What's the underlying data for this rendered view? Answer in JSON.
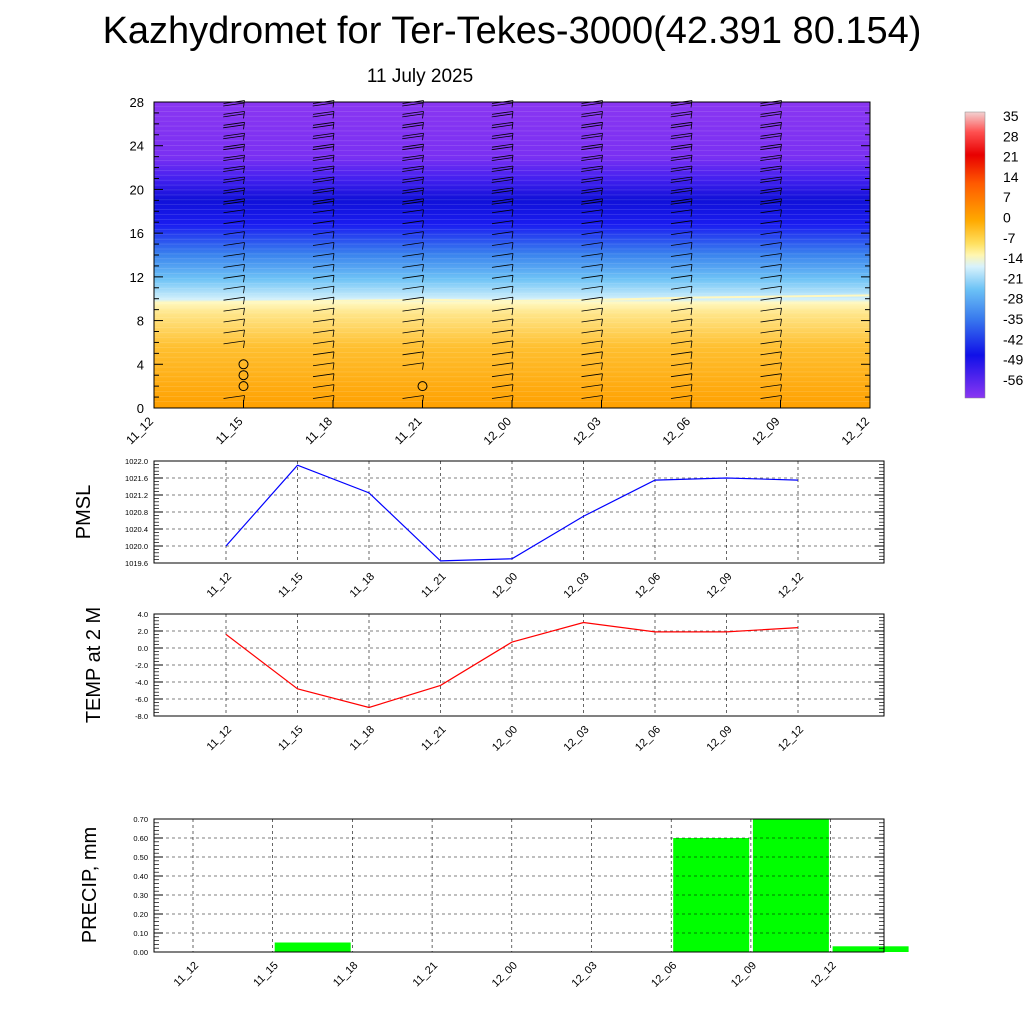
{
  "title": "Kazhydromet for Ter-Tekes-3000(42.391 80.154)",
  "subtitle": "11 July 2025",
  "time_labels": [
    "11_12",
    "11_15",
    "11_18",
    "11_21",
    "12_00",
    "12_03",
    "12_06",
    "12_09",
    "12_12"
  ],
  "colorbar": {
    "labels": [
      "35",
      "28",
      "21",
      "14",
      "7",
      "0",
      "-7",
      "-14",
      "-21",
      "-28",
      "-35",
      "-42",
      "-49",
      "-56"
    ]
  },
  "chart_data": [
    {
      "type": "heatmap",
      "name": "temperature cross-section with wind barbs",
      "x": [
        "11_12",
        "11_15",
        "11_18",
        "11_21",
        "12_00",
        "12_03",
        "12_06",
        "12_09",
        "12_12"
      ],
      "ylim": [
        0,
        28
      ],
      "yticks": [
        0,
        4,
        8,
        12,
        16,
        20,
        24,
        28
      ],
      "colorbar_range": [
        -56,
        35
      ],
      "colors": {
        "warm_low": "#ffa200",
        "warm_mid": "#ffd040",
        "warm_top": "#fff6a8",
        "cold_start": "#c8ecfa",
        "cold_mid": "#4aa6f0",
        "coldest": "#1414e8",
        "top": "#8030f0"
      },
      "freezing_level_by_time": [
        9.6,
        9.7,
        9.8,
        9.9,
        9.8,
        9.9,
        10.1,
        10.2,
        10.3
      ],
      "calm_markers": [
        {
          "x": "11_15",
          "y": [
            2,
            3,
            4
          ]
        },
        {
          "x": "11_21",
          "y": [
            2
          ]
        }
      ]
    },
    {
      "type": "line",
      "ylabel": "PMSL",
      "color": "#0000ff",
      "x": [
        "11_12",
        "11_15",
        "11_18",
        "11_21",
        "12_00",
        "12_03",
        "12_06",
        "12_09",
        "12_12"
      ],
      "values": [
        1020.0,
        1021.9,
        1021.25,
        1019.65,
        1019.7,
        1020.7,
        1021.55,
        1021.6,
        1021.55
      ],
      "ylim": [
        1019.6,
        1022.0
      ],
      "yticks": [
        "1019.6",
        "1020.0",
        "1020.4",
        "1020.8",
        "1021.2",
        "1021.6",
        "1022.0"
      ],
      "grid": true
    },
    {
      "type": "line",
      "ylabel": "TEMP at 2 M",
      "color": "#ff0000",
      "x": [
        "11_12",
        "11_15",
        "11_18",
        "11_21",
        "12_00",
        "12_03",
        "12_06",
        "12_09",
        "12_12"
      ],
      "values": [
        1.6,
        -4.8,
        -7.0,
        -4.4,
        0.7,
        3.0,
        1.9,
        1.9,
        2.4
      ],
      "ylim": [
        -8.0,
        4.0
      ],
      "yticks": [
        "-8.0",
        "-6.0",
        "-4.0",
        "-2.0",
        "0.0",
        "2.0",
        "4.0"
      ],
      "grid": true
    },
    {
      "type": "bar",
      "ylabel": "PRECIP, mm",
      "color": "#00ff00",
      "categories": [
        "11_12",
        "11_15",
        "11_18",
        "11_21",
        "12_00",
        "12_03",
        "12_06",
        "12_09",
        "12_12"
      ],
      "values": [
        0.0,
        0.05,
        0.0,
        0.0,
        0.0,
        0.0,
        0.6,
        0.7,
        0.03
      ],
      "ylim": [
        0.0,
        0.7
      ],
      "yticks": [
        "0.00",
        "0.10",
        "0.20",
        "0.30",
        "0.40",
        "0.50",
        "0.60",
        "0.70"
      ],
      "grid": true
    }
  ]
}
